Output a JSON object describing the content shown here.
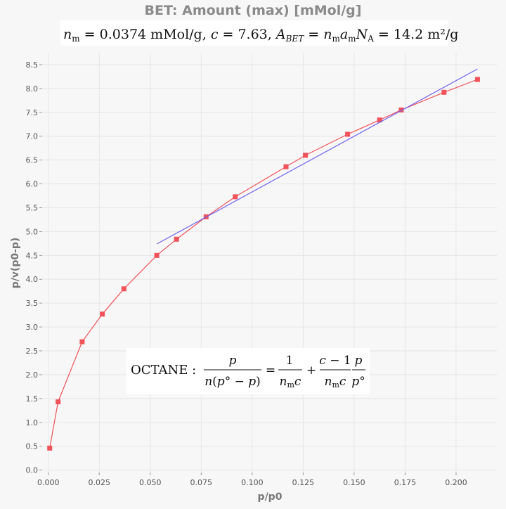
{
  "chart_data": {
    "type": "scatter",
    "title": "BET: Amount (max) [mMol/g]",
    "subtitle_parts": {
      "nm_value": "0.0374",
      "nm_unit": "mMol/g,",
      "c_value": "7.63,",
      "abet_value": "14.2",
      "abet_unit": "m²/g"
    },
    "xlabel": "p/p0",
    "ylabel": "p/v(p0-p)",
    "xlim": [
      -0.003,
      0.22
    ],
    "ylim": [
      -0.05,
      8.75
    ],
    "x_ticks": [
      0,
      0.025,
      0.05,
      0.075,
      0.1,
      0.125,
      0.15,
      0.175,
      0.2
    ],
    "x_tick_labels": [
      "0.000",
      "0.025",
      "0.050",
      "0.075",
      "0.100",
      "0.125",
      "0.150",
      "0.175",
      "0.200"
    ],
    "y_ticks": [
      0,
      0.5,
      1,
      1.5,
      2,
      2.5,
      3,
      3.5,
      4,
      4.5,
      5,
      5.5,
      6,
      6.5,
      7,
      7.5,
      8,
      8.5
    ],
    "y_tick_labels": [
      "0.0",
      "0.5",
      "1.0",
      "1.5",
      "2.0",
      "2.5",
      "3.0",
      "3.5",
      "4.0",
      "4.5",
      "5.0",
      "5.5",
      "6.0",
      "6.5",
      "7.0",
      "7.5",
      "8.0",
      "8.5"
    ],
    "grid": true,
    "series": [
      {
        "type": "line+markers",
        "color": "#f0525a",
        "x": [
          0.0007,
          0.0048,
          0.0166,
          0.0265,
          0.0371,
          0.0532,
          0.0629,
          0.0774,
          0.0917,
          0.1166,
          0.1261,
          0.1468,
          0.1625,
          0.1731,
          0.1941,
          0.2105
        ],
        "y": [
          0.46,
          1.43,
          2.69,
          3.27,
          3.8,
          4.5,
          4.84,
          5.31,
          5.73,
          6.36,
          6.6,
          7.04,
          7.34,
          7.55,
          7.92,
          8.19
        ]
      },
      {
        "type": "line",
        "color": "#6f63ef",
        "x": [
          0.0532,
          0.2105
        ],
        "y": [
          4.74,
          8.41
        ]
      }
    ],
    "annotation": {
      "compound": "OCTANE"
    }
  }
}
